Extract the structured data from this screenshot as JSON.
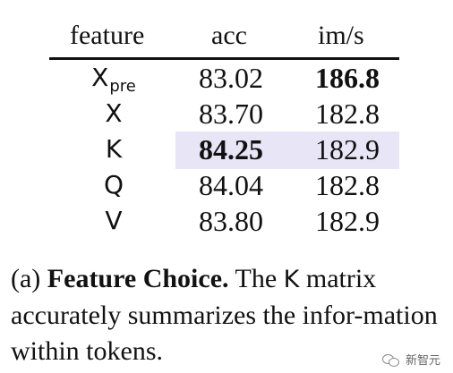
{
  "table": {
    "headers": [
      "feature",
      "acc",
      "im/s"
    ],
    "rows": [
      {
        "feature": "X",
        "feature_sub": "pre",
        "acc": "83.02",
        "ims": "186.8"
      },
      {
        "feature": "X",
        "feature_sub": "",
        "acc": "83.70",
        "ims": "182.8"
      },
      {
        "feature": "K",
        "feature_sub": "",
        "acc": "84.25",
        "ims": "182.9"
      },
      {
        "feature": "Q",
        "feature_sub": "",
        "acc": "84.04",
        "ims": "182.8"
      },
      {
        "feature": "V",
        "feature_sub": "",
        "acc": "83.80",
        "ims": "182.9"
      }
    ],
    "highlight_color": "#e7e5f6"
  },
  "caption": {
    "label": "(a)",
    "title": "Feature Choice.",
    "text_before": "The",
    "mono_word": "K",
    "text_after": "matrix accurately summarizes the infor-mation within tokens."
  },
  "watermark": {
    "text": "新智元",
    "icon": "wechat-icon"
  }
}
